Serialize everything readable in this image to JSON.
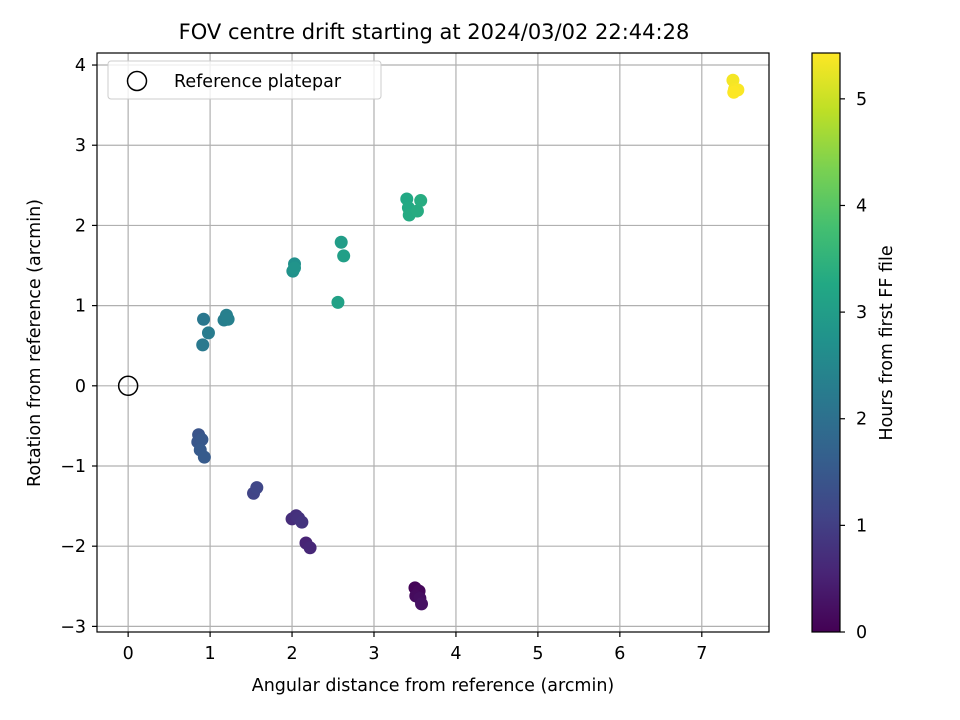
{
  "chart_data": {
    "type": "scatter",
    "title": "FOV centre drift starting at 2024/03/02 22:44:28",
    "xlabel": "Angular distance from reference (arcmin)",
    "ylabel": "Rotation from reference (arcmin)",
    "xlim": [
      -0.38,
      7.82
    ],
    "ylim": [
      -3.07,
      4.15
    ],
    "xticks": [
      0,
      1,
      2,
      3,
      4,
      5,
      6,
      7
    ],
    "yticks": [
      -3,
      -2,
      -1,
      0,
      1,
      2,
      3,
      4
    ],
    "xtick_labels": [
      "0",
      "1",
      "2",
      "3",
      "4",
      "5",
      "6",
      "7"
    ],
    "ytick_labels": [
      "−3",
      "−2",
      "−1",
      "0",
      "1",
      "2",
      "3",
      "4"
    ],
    "grid": true,
    "legend": {
      "position": "top-left",
      "label": "Reference platepar"
    },
    "reference_point": {
      "x": 0,
      "y": 0
    },
    "colorbar": {
      "label": "Hours from first FF file",
      "range": [
        0,
        5.43
      ],
      "ticks": [
        0,
        1,
        2,
        3,
        4,
        5
      ],
      "tick_labels": [
        "0",
        "1",
        "2",
        "3",
        "4",
        "5"
      ],
      "colormap": "viridis"
    },
    "points": [
      {
        "x": 3.5,
        "y": -2.52,
        "hours": 0.05
      },
      {
        "x": 3.55,
        "y": -2.56,
        "hours": 0.1
      },
      {
        "x": 3.51,
        "y": -2.62,
        "hours": 0.15
      },
      {
        "x": 3.56,
        "y": -2.65,
        "hours": 0.2
      },
      {
        "x": 3.58,
        "y": -2.72,
        "hours": 0.25
      },
      {
        "x": 2.17,
        "y": -1.96,
        "hours": 0.55
      },
      {
        "x": 2.22,
        "y": -2.02,
        "hours": 0.6
      },
      {
        "x": 2.0,
        "y": -1.66,
        "hours": 0.7
      },
      {
        "x": 2.05,
        "y": -1.62,
        "hours": 0.75
      },
      {
        "x": 2.08,
        "y": -1.65,
        "hours": 0.78
      },
      {
        "x": 2.12,
        "y": -1.7,
        "hours": 0.82
      },
      {
        "x": 1.53,
        "y": -1.34,
        "hours": 1.1
      },
      {
        "x": 1.57,
        "y": -1.27,
        "hours": 1.15
      },
      {
        "x": 0.86,
        "y": -0.61,
        "hours": 1.4
      },
      {
        "x": 0.85,
        "y": -0.7,
        "hours": 1.45
      },
      {
        "x": 0.9,
        "y": -0.67,
        "hours": 1.48
      },
      {
        "x": 0.88,
        "y": -0.8,
        "hours": 1.52
      },
      {
        "x": 0.93,
        "y": -0.89,
        "hours": 1.55
      },
      {
        "x": 0.92,
        "y": 0.83,
        "hours": 2.15
      },
      {
        "x": 0.91,
        "y": 0.51,
        "hours": 2.2
      },
      {
        "x": 0.98,
        "y": 0.66,
        "hours": 2.25
      },
      {
        "x": 1.17,
        "y": 0.82,
        "hours": 2.3
      },
      {
        "x": 1.2,
        "y": 0.88,
        "hours": 2.32
      },
      {
        "x": 1.22,
        "y": 0.83,
        "hours": 2.35
      },
      {
        "x": 2.03,
        "y": 1.52,
        "hours": 2.7
      },
      {
        "x": 2.01,
        "y": 1.43,
        "hours": 2.75
      },
      {
        "x": 2.03,
        "y": 1.47,
        "hours": 2.78
      },
      {
        "x": 2.6,
        "y": 1.79,
        "hours": 3.0
      },
      {
        "x": 2.63,
        "y": 1.62,
        "hours": 3.05
      },
      {
        "x": 2.56,
        "y": 1.04,
        "hours": 3.1
      },
      {
        "x": 3.4,
        "y": 2.33,
        "hours": 3.25
      },
      {
        "x": 3.42,
        "y": 2.22,
        "hours": 3.28
      },
      {
        "x": 3.43,
        "y": 2.13,
        "hours": 3.3
      },
      {
        "x": 3.53,
        "y": 2.18,
        "hours": 3.33
      },
      {
        "x": 3.57,
        "y": 2.31,
        "hours": 3.35
      },
      {
        "x": 7.38,
        "y": 3.81,
        "hours": 5.35
      },
      {
        "x": 7.4,
        "y": 3.7,
        "hours": 5.38
      },
      {
        "x": 7.44,
        "y": 3.69,
        "hours": 5.4
      },
      {
        "x": 7.39,
        "y": 3.66,
        "hours": 5.42
      }
    ]
  }
}
